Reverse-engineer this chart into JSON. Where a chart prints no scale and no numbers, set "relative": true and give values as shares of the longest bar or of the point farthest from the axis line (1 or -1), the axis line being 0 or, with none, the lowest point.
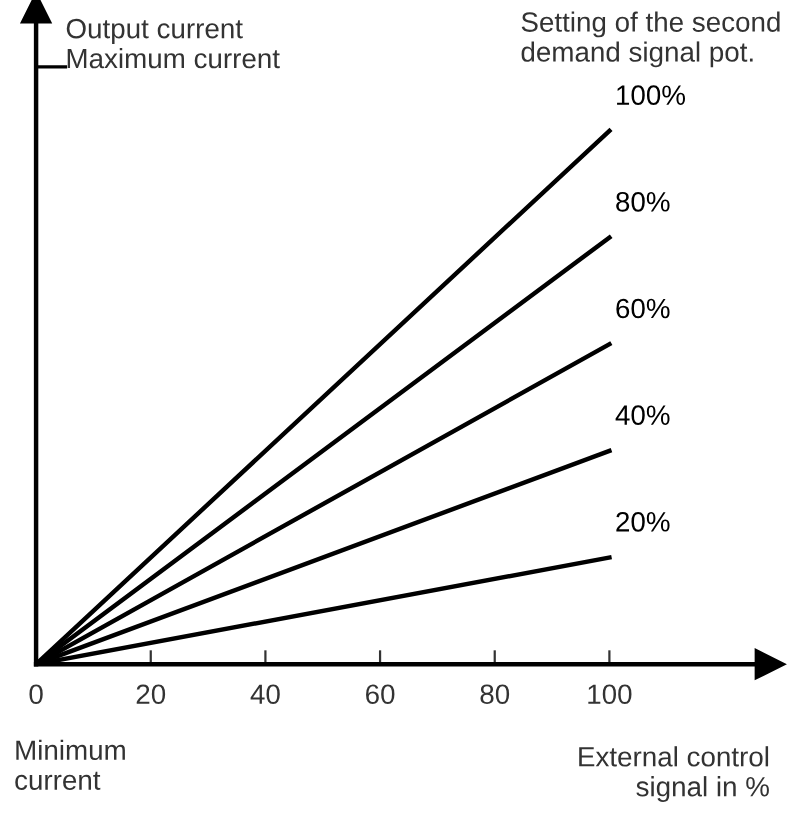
{
  "chart_data": {
    "type": "line",
    "relative": true,
    "ylabel": "Output current\nMaximum current",
    "legend_title": "Setting of the second\ndemand signal pot.",
    "xlabel": "External control\nsignal in %",
    "annotations": [
      "Minimum\ncurrent"
    ],
    "xlim": [
      0,
      128
    ],
    "xticks": [
      0,
      20,
      40,
      60,
      80,
      100
    ],
    "x": [
      0,
      100
    ],
    "color": "#000000",
    "legend": false,
    "series": [
      {
        "name": "100%",
        "values": [
          0,
          1
        ]
      },
      {
        "name": "80%",
        "values": [
          0,
          0.8
        ]
      },
      {
        "name": "60%",
        "values": [
          0,
          0.6
        ]
      },
      {
        "name": "40%",
        "values": [
          0,
          0.4
        ]
      },
      {
        "name": "20%",
        "values": [
          0,
          0.2
        ]
      }
    ]
  }
}
